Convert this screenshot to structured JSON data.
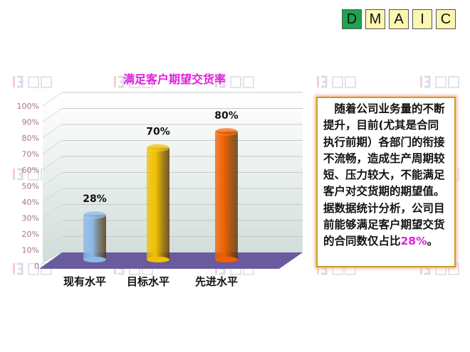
{
  "dmaic": {
    "steps": [
      "D",
      "M",
      "A",
      "I",
      "C"
    ],
    "active": "D",
    "active_color": "#1ea34f",
    "inactive_color": "#fbf7b0"
  },
  "watermark": {
    "logo": "B",
    "text": "博革"
  },
  "chart_data": {
    "type": "bar",
    "title": "满足客户期望交货率",
    "categories": [
      "现有水平",
      "目标水平",
      "先进水平"
    ],
    "values": [
      28,
      70,
      80
    ],
    "data_labels": [
      "28%",
      "70%",
      "80%"
    ],
    "colors": [
      "#8ab8e8",
      "#f0c000",
      "#f06000"
    ],
    "ylim": [
      0,
      100
    ],
    "yticks": [
      "0",
      "10%",
      "20%",
      "30%",
      "40%",
      "50%",
      "60%",
      "70%",
      "80%",
      "90%",
      "100%"
    ],
    "grid": true,
    "style": "3d-cylinder"
  },
  "textbox": {
    "main": "　随着公司业务量的不断提升，目前(尤其是合同执行前期）各部门的衔接不流畅，造成生产周期较短、压力较大，不能满足客户对交货期的期望值。据数据统计分析，公司目前能够满足客户期望交货的合同数仅占比",
    "highlight": "28%",
    "end": "。",
    "highlight_color": "#e020e0"
  }
}
